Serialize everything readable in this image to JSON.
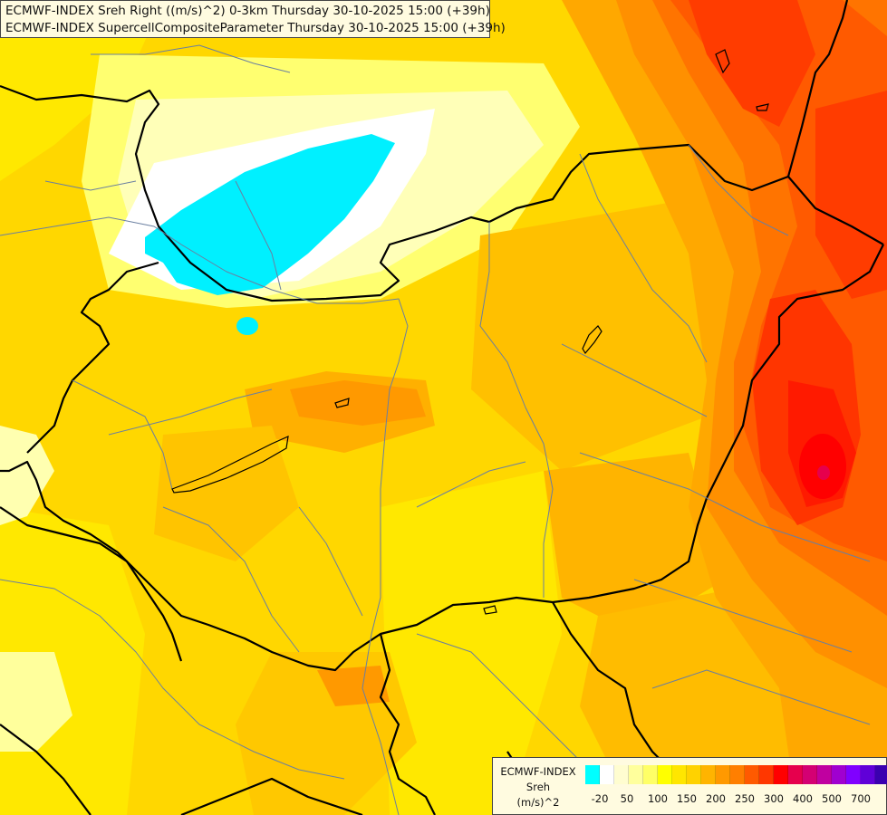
{
  "title": {
    "line1": "ECMWF-INDEX Sreh Right ((m/s)^2) 0-3km Thursday 30-10-2025 15:00 (+39h)",
    "line2": "ECMWF-INDEX SupercellCompositeParameter Thursday 30-10-2025 15:00 (+39h)"
  },
  "legend": {
    "label1": "ECMWF-INDEX",
    "label2": "Sreh",
    "label3": "(m/s)^2",
    "colors": [
      "#00ffff",
      "#ffffff",
      "#fffdd0",
      "#ffff9c",
      "#ffff66",
      "#ffff00",
      "#ffe600",
      "#ffd200",
      "#ffb400",
      "#ff9900",
      "#ff7f00",
      "#ff5a00",
      "#ff3700",
      "#ff0000",
      "#e6004d",
      "#d40073",
      "#c000a0",
      "#a000d0",
      "#8000ff",
      "#6000d8",
      "#3a00b0",
      "#1a0090"
    ],
    "ticks": [
      "-20",
      "50",
      "100",
      "150",
      "200",
      "250",
      "300",
      "400",
      "500",
      "700"
    ]
  },
  "palette": {
    "background": "#ffd700",
    "border": "#000000",
    "river": "#6a7fa0"
  }
}
